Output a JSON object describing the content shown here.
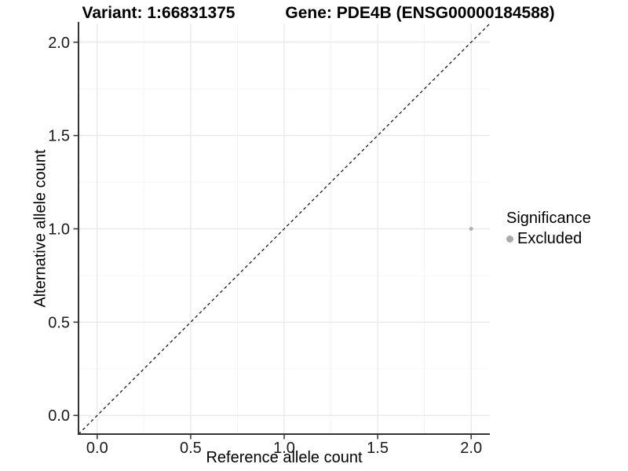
{
  "figure": {
    "background": "#ffffff"
  },
  "chart_data": {
    "type": "scatter",
    "titles": {
      "left": "Variant: 1:66831375",
      "right": "Gene: PDE4B (ENSG00000184588)"
    },
    "xlabel": "Reference allele count",
    "ylabel": "Alternative allele count",
    "xlim": [
      -0.1,
      2.1
    ],
    "ylim": [
      -0.1,
      2.1
    ],
    "x_tick_values": [
      0,
      0.5,
      1,
      1.5,
      2
    ],
    "x_tick_labels": [
      "0.0",
      "0.5",
      "1.0",
      "1.5",
      "2.0"
    ],
    "y_tick_values": [
      0,
      0.5,
      1,
      1.5,
      2
    ],
    "y_tick_labels": [
      "0.0",
      "0.5",
      "1.0",
      "1.5",
      "2.0"
    ],
    "grid": {
      "major": true,
      "minor": true,
      "major_color": "#e8e8e8",
      "minor_color": "#f4f4f4"
    },
    "identity_line": {
      "style": "dashed",
      "from": [
        -0.1,
        -0.1
      ],
      "to": [
        2.1,
        2.1
      ],
      "color": "#1a1a1a"
    },
    "points": [
      {
        "x": 2.0,
        "y": 1.0,
        "significance": "Excluded",
        "color": "#b0b0b0",
        "radius": 2.5
      }
    ],
    "legend": {
      "title": "Significance",
      "position": "right",
      "items": [
        {
          "label": "Excluded",
          "color": "#aaaaaa"
        }
      ]
    },
    "axis_color": "#333333",
    "tick_text_color": "#1a1a1a"
  }
}
